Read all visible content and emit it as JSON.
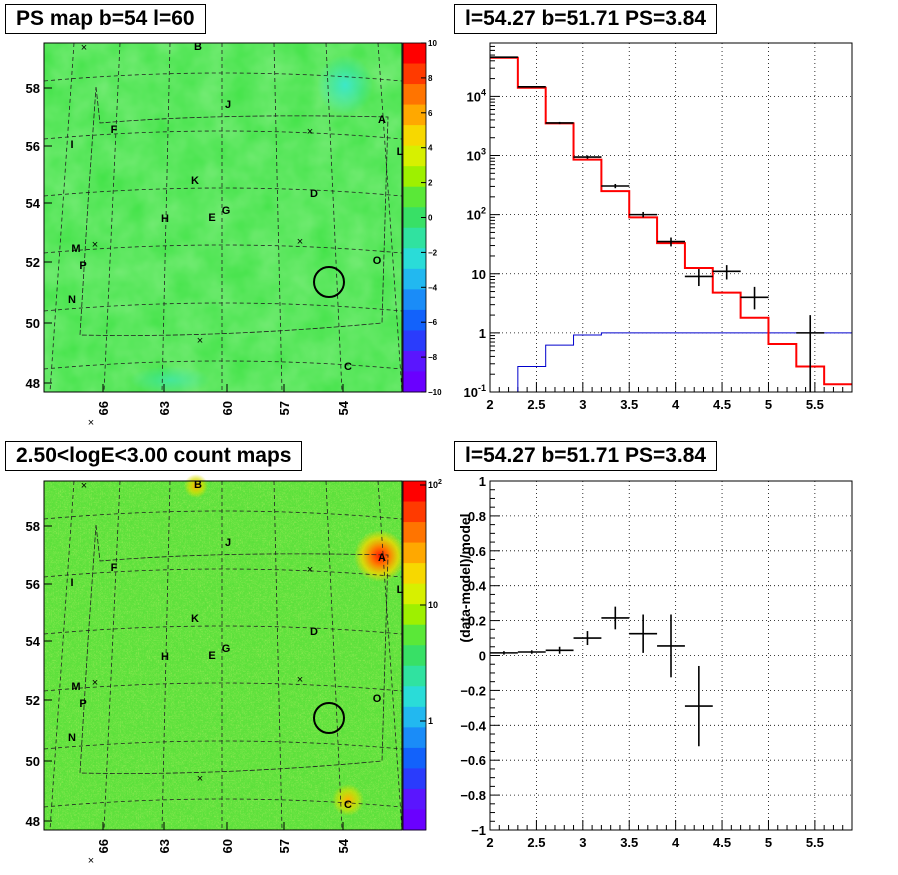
{
  "chart_data": [
    {
      "type": "heatmap",
      "title": "PS map b=54 l=60",
      "x_ticks": [
        "66",
        "63",
        "60",
        "57",
        "54"
      ],
      "y_ticks": [
        "58",
        "56",
        "54",
        "52",
        "50",
        "48"
      ],
      "colorbar_ticks": [
        "10",
        "8",
        "6",
        "4",
        "2",
        "0",
        "−2",
        "−4",
        "−6",
        "−8",
        "−10"
      ],
      "colorbar_range": [
        -10,
        10
      ],
      "source_labels": [
        "A",
        "B",
        "C",
        "D",
        "E",
        "F",
        "G",
        "H",
        "I",
        "J",
        "K",
        "L",
        "M",
        "N",
        "O",
        "P"
      ],
      "colors": {
        "background": "#38e43c",
        "low": "#6a00ff",
        "high": "#ff0000"
      }
    },
    {
      "type": "line",
      "title": "l=54.27 b=51.71 PS=3.84",
      "xlabel": "",
      "ylabel": "",
      "xlim": [
        2,
        5.9
      ],
      "ylim_log": [
        0.1,
        80000
      ],
      "yscale": "log",
      "grid": true,
      "x_ticks": [
        "2",
        "2.5",
        "3",
        "3.5",
        "4",
        "4.5",
        "5",
        "5.5"
      ],
      "y_ticks": [
        "10^-1",
        "1",
        "10",
        "10^2",
        "10^3",
        "10^4"
      ],
      "bin_edges": [
        2.0,
        2.3,
        2.6,
        2.9,
        3.2,
        3.5,
        3.8,
        4.1,
        4.4,
        4.7,
        5.0,
        5.3,
        5.6,
        5.9
      ],
      "series": [
        {
          "role": "model",
          "color": "#ff0000",
          "values": [
            45000,
            14000,
            3500,
            850,
            250,
            90,
            33,
            12.5,
            4.8,
            1.8,
            0.65,
            0.27,
            0.135
          ]
        },
        {
          "role": "background",
          "color": "#0000cc",
          "values": [
            0.1,
            0.27,
            0.62,
            0.92,
            1.0,
            1.0,
            1.0,
            1.0,
            1.0,
            1.0,
            1.0,
            1.0,
            1.0
          ]
        },
        {
          "role": "data",
          "color": "#000000",
          "points": [
            {
              "x": 2.15,
              "y": 46000,
              "lo": 45400,
              "hi": 46600
            },
            {
              "x": 2.45,
              "y": 14500,
              "lo": 14100,
              "hi": 14900
            },
            {
              "x": 2.75,
              "y": 3550,
              "lo": 3400,
              "hi": 3700
            },
            {
              "x": 3.05,
              "y": 940,
              "lo": 880,
              "hi": 1000
            },
            {
              "x": 3.35,
              "y": 305,
              "lo": 280,
              "hi": 330
            },
            {
              "x": 3.65,
              "y": 100,
              "lo": 90,
              "hi": 111
            },
            {
              "x": 3.95,
              "y": 35,
              "lo": 29,
              "hi": 41
            },
            {
              "x": 4.25,
              "y": 9,
              "lo": 6.2,
              "hi": 12
            },
            {
              "x": 4.55,
              "y": 11,
              "lo": 8,
              "hi": 14
            },
            {
              "x": 4.85,
              "y": 4,
              "lo": 2.5,
              "hi": 6
            },
            {
              "x": 5.45,
              "y": 1,
              "lo": 0.1,
              "hi": 2
            }
          ]
        }
      ]
    },
    {
      "type": "heatmap",
      "title": "2.50<logE<3.00 count maps",
      "x_ticks": [
        "66",
        "63",
        "60",
        "57",
        "54"
      ],
      "y_ticks": [
        "58",
        "56",
        "54",
        "52",
        "50",
        "48"
      ],
      "colorbar_ticks": [
        "10^2",
        "10",
        "1"
      ],
      "colorbar_scale": "log",
      "source_labels": [
        "A",
        "B",
        "C",
        "D",
        "E",
        "F",
        "G",
        "H",
        "I",
        "J",
        "K",
        "L",
        "M",
        "N",
        "O",
        "P"
      ],
      "colors": {
        "background": "#5ae03a",
        "low": "#6a00ff",
        "high": "#ff0000"
      }
    },
    {
      "type": "scatter",
      "title": "l=54.27 b=51.71 PS=3.84",
      "xlabel": "",
      "ylabel": "(data-model)/model",
      "xlim": [
        2,
        5.9
      ],
      "ylim": [
        -1,
        1
      ],
      "grid": true,
      "x_ticks": [
        "2",
        "2.5",
        "3",
        "3.5",
        "4",
        "4.5",
        "5",
        "5.5"
      ],
      "y_ticks": [
        "1",
        "0.8",
        "0.6",
        "0.4",
        "0.2",
        "0",
        "−0.2",
        "−0.4",
        "−0.6",
        "−0.8",
        "−1"
      ],
      "points": [
        {
          "x": 2.15,
          "y": 0.015,
          "xerr": 0.15,
          "yerr": 0.01
        },
        {
          "x": 2.45,
          "y": 0.02,
          "xerr": 0.15,
          "yerr": 0.01
        },
        {
          "x": 2.75,
          "y": 0.03,
          "xerr": 0.15,
          "yerr": 0.02
        },
        {
          "x": 3.05,
          "y": 0.1,
          "xerr": 0.15,
          "yerr": 0.04
        },
        {
          "x": 3.35,
          "y": 0.215,
          "xerr": 0.15,
          "yerr": 0.065
        },
        {
          "x": 3.65,
          "y": 0.125,
          "xerr": 0.15,
          "yerr": 0.11
        },
        {
          "x": 3.95,
          "y": 0.055,
          "xerr": 0.15,
          "yerr": 0.18
        },
        {
          "x": 4.25,
          "y": -0.29,
          "xerr": 0.15,
          "yerr": 0.23
        }
      ]
    }
  ]
}
